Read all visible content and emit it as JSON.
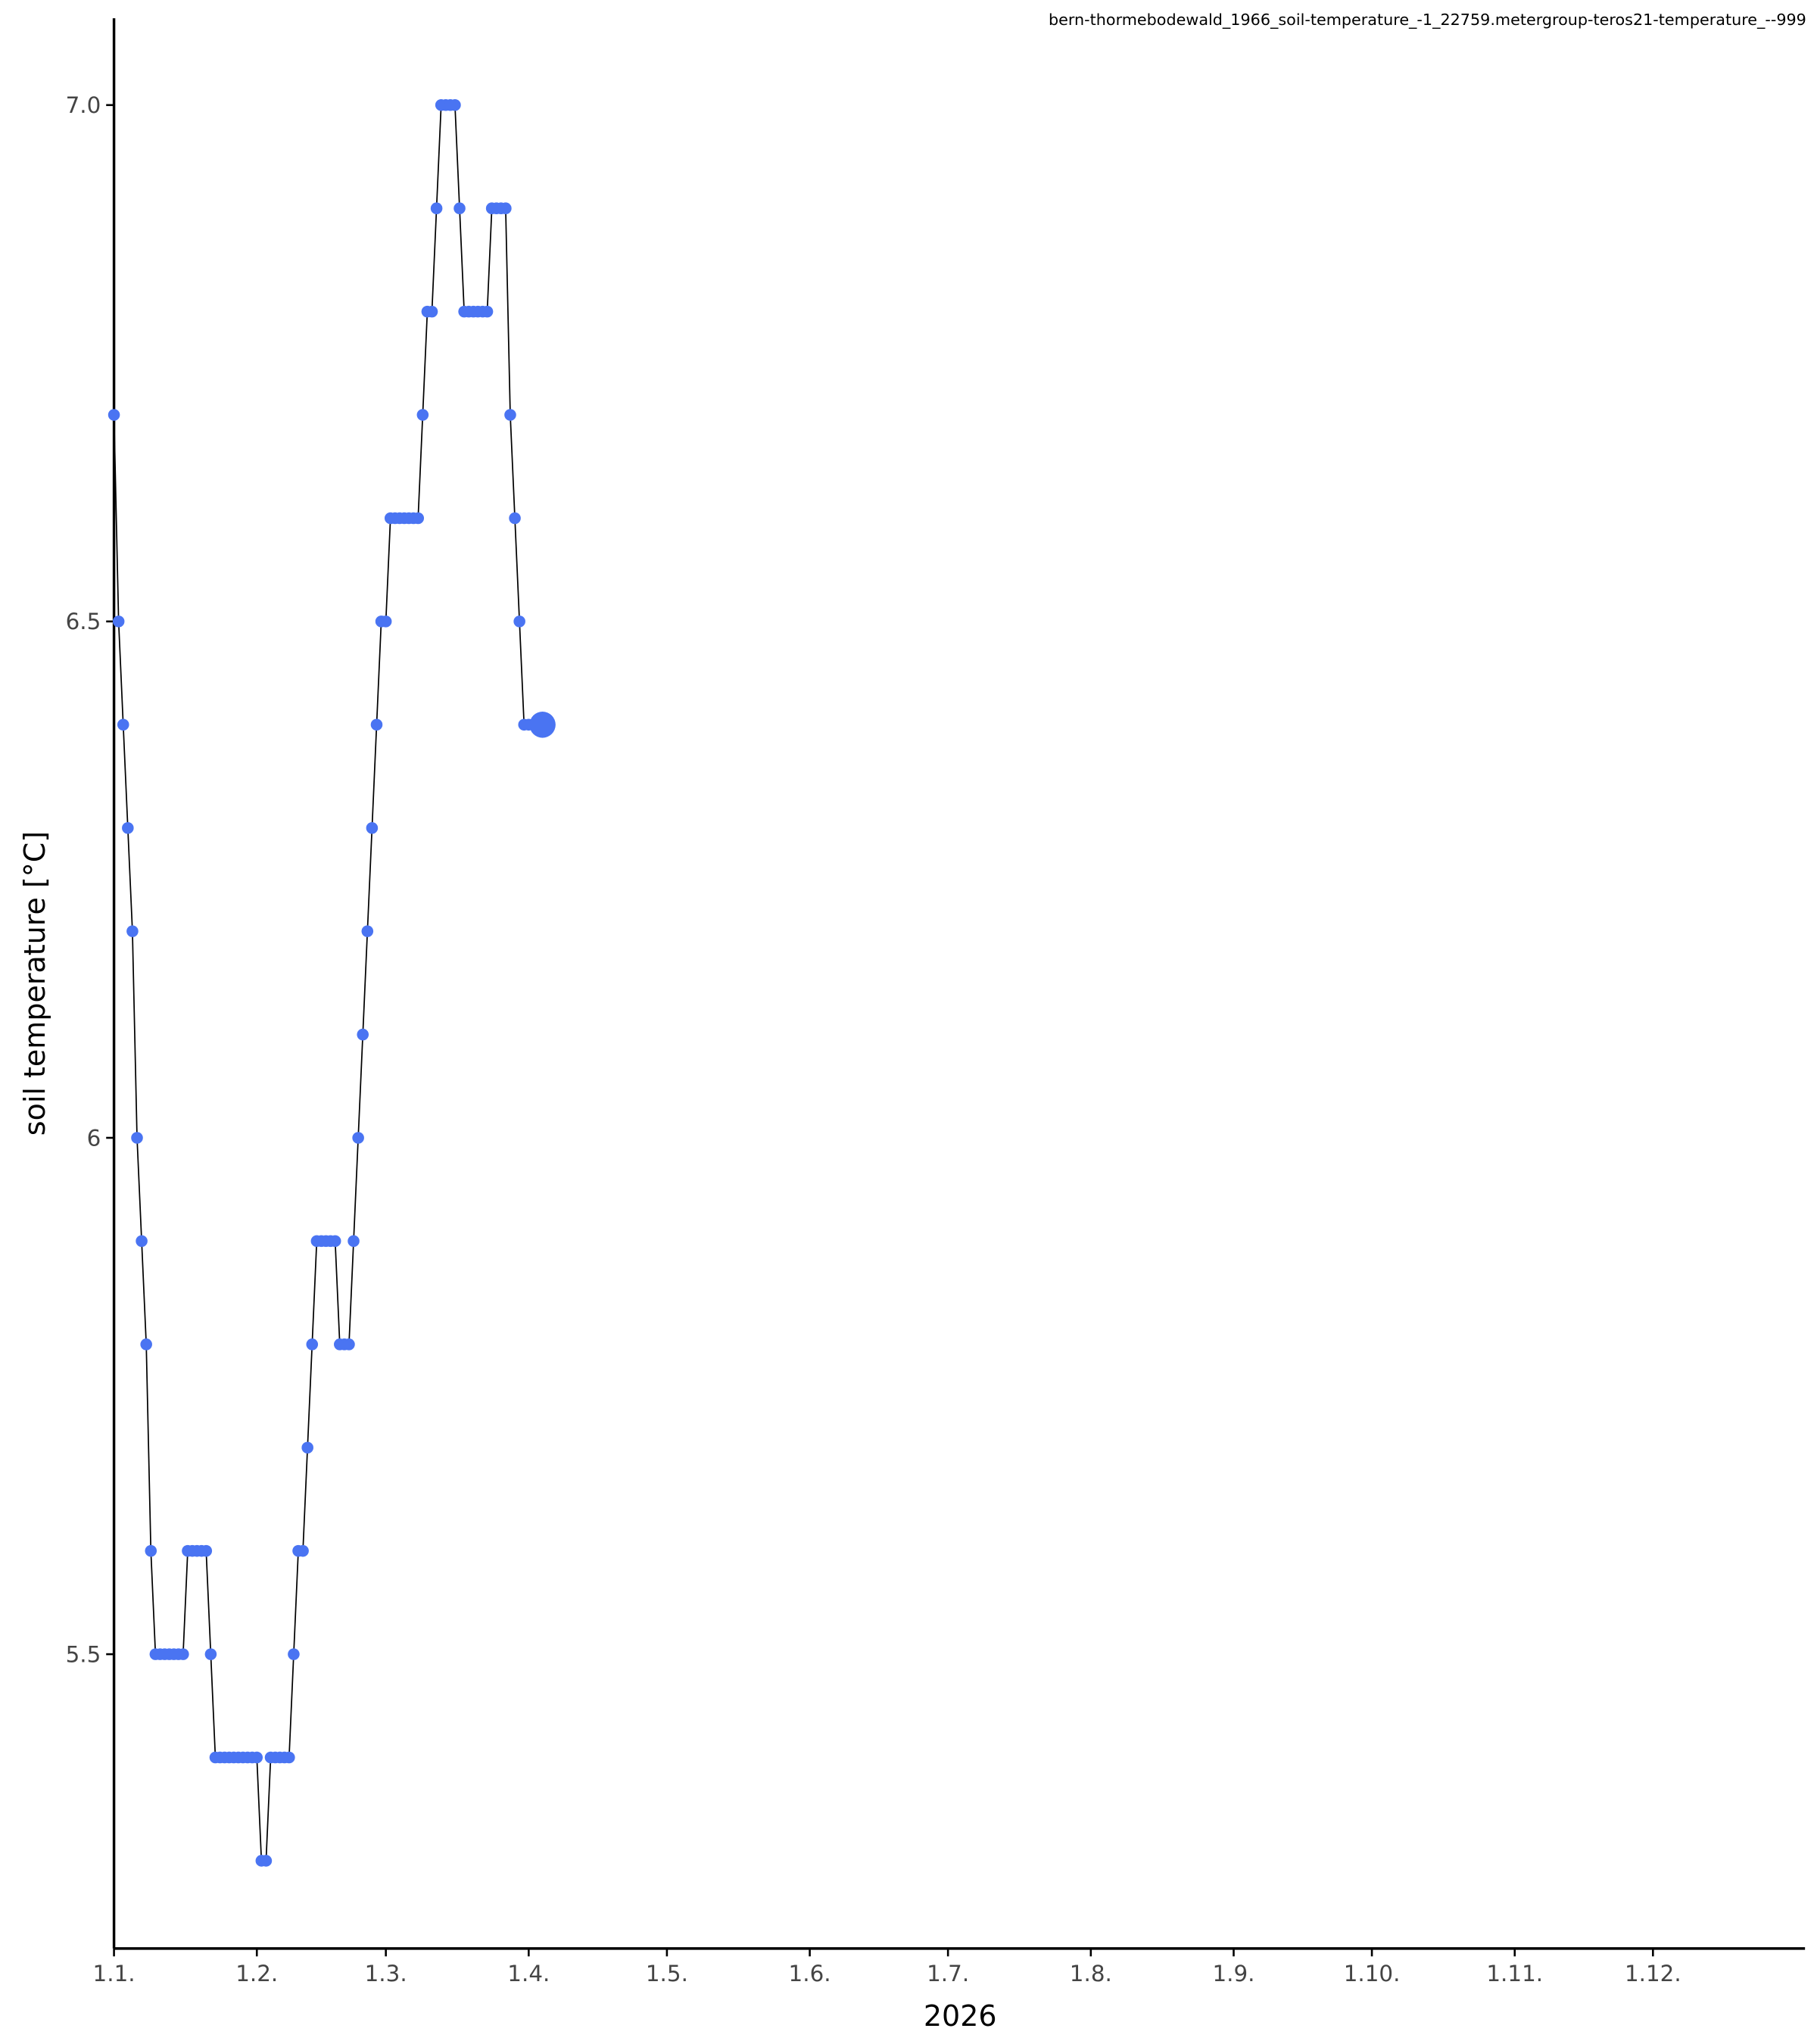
{
  "chart_data": {
    "type": "line",
    "title": "bern-thormebodewald_1966_soil-temperature_-1_22759.metergroup-teros21-temperature_--999",
    "x_label": "2026",
    "y_label": "soil temperature [°C]",
    "color": "#4a74f2",
    "line_color": "#000000",
    "marker_size": 4.5,
    "last_marker_size": 10,
    "grid": false,
    "xlim": [
      "2026-01-01",
      "2027-01-03"
    ],
    "xticks": [
      {
        "value": "2026-01-01",
        "label": "1.1."
      },
      {
        "value": "2026-02-01",
        "label": "1.2."
      },
      {
        "value": "2026-03-01",
        "label": "1.3."
      },
      {
        "value": "2026-04-01",
        "label": "1.4."
      },
      {
        "value": "2026-05-01",
        "label": "1.5."
      },
      {
        "value": "2026-06-01",
        "label": "1.6."
      },
      {
        "value": "2026-07-01",
        "label": "1.7."
      },
      {
        "value": "2026-08-01",
        "label": "1.8."
      },
      {
        "value": "2026-09-01",
        "label": "1.9."
      },
      {
        "value": "2026-10-01",
        "label": "1.10."
      },
      {
        "value": "2026-11-01",
        "label": "1.11."
      },
      {
        "value": "2026-12-01",
        "label": "1.12."
      }
    ],
    "ylim": [
      5.215,
      7.084
    ],
    "yticks": [
      5.5,
      6,
      6.5,
      {
        "value": 7,
        "label": "7.0"
      }
    ],
    "x": [
      "2026-01-01",
      "2026-01-02",
      "2026-01-03",
      "2026-01-04",
      "2026-01-05",
      "2026-01-06",
      "2026-01-07",
      "2026-01-08",
      "2026-01-09",
      "2026-01-10",
      "2026-01-11",
      "2026-01-12",
      "2026-01-13",
      "2026-01-14",
      "2026-01-15",
      "2026-01-16",
      "2026-01-17",
      "2026-01-18",
      "2026-01-19",
      "2026-01-20",
      "2026-01-21",
      "2026-01-22",
      "2026-01-23",
      "2026-01-24",
      "2026-01-25",
      "2026-01-26",
      "2026-01-27",
      "2026-01-28",
      "2026-01-29",
      "2026-01-30",
      "2026-01-31",
      "2026-02-01",
      "2026-02-02",
      "2026-02-03",
      "2026-02-04",
      "2026-02-05",
      "2026-02-06",
      "2026-02-07",
      "2026-02-08",
      "2026-02-09",
      "2026-02-10",
      "2026-02-11",
      "2026-02-12",
      "2026-02-13",
      "2026-02-14",
      "2026-02-15",
      "2026-02-16",
      "2026-02-17",
      "2026-02-18",
      "2026-02-19",
      "2026-02-20",
      "2026-02-21",
      "2026-02-22",
      "2026-02-23",
      "2026-02-24",
      "2026-02-25",
      "2026-02-26",
      "2026-02-27",
      "2026-02-28",
      "2026-03-01",
      "2026-03-02",
      "2026-03-03",
      "2026-03-04",
      "2026-03-05",
      "2026-03-06",
      "2026-03-07",
      "2026-03-08",
      "2026-03-09",
      "2026-03-10",
      "2026-03-11",
      "2026-03-12",
      "2026-03-13",
      "2026-03-14",
      "2026-03-15",
      "2026-03-16",
      "2026-03-17",
      "2026-03-18",
      "2026-03-19",
      "2026-03-20",
      "2026-03-21",
      "2026-03-22",
      "2026-03-23",
      "2026-03-24",
      "2026-03-25",
      "2026-03-26",
      "2026-03-27",
      "2026-03-28",
      "2026-03-29",
      "2026-03-30",
      "2026-03-31",
      "2026-04-01",
      "2026-04-04"
    ],
    "values": [
      6.7,
      6.5,
      6.4,
      6.3,
      6.2,
      6.0,
      5.9,
      5.8,
      5.6,
      5.5,
      5.5,
      5.5,
      5.5,
      5.5,
      5.5,
      5.5,
      5.6,
      5.6,
      5.6,
      5.6,
      5.6,
      5.5,
      5.4,
      5.4,
      5.4,
      5.4,
      5.4,
      5.4,
      5.4,
      5.4,
      5.4,
      5.4,
      5.3,
      5.3,
      5.4,
      5.4,
      5.4,
      5.4,
      5.4,
      5.5,
      5.6,
      5.6,
      5.7,
      5.8,
      5.9,
      5.9,
      5.9,
      5.9,
      5.9,
      5.8,
      5.8,
      5.8,
      5.9,
      6.0,
      6.1,
      6.2,
      6.3,
      6.4,
      6.5,
      6.5,
      6.6,
      6.6,
      6.6,
      6.6,
      6.6,
      6.6,
      6.6,
      6.7,
      6.8,
      6.8,
      6.9,
      7.0,
      7.0,
      7.0,
      7.0,
      6.9,
      6.8,
      6.8,
      6.8,
      6.8,
      6.8,
      6.8,
      6.9,
      6.9,
      6.9,
      6.9,
      6.7,
      6.6,
      6.5,
      6.4,
      6.4,
      6.4
    ]
  }
}
